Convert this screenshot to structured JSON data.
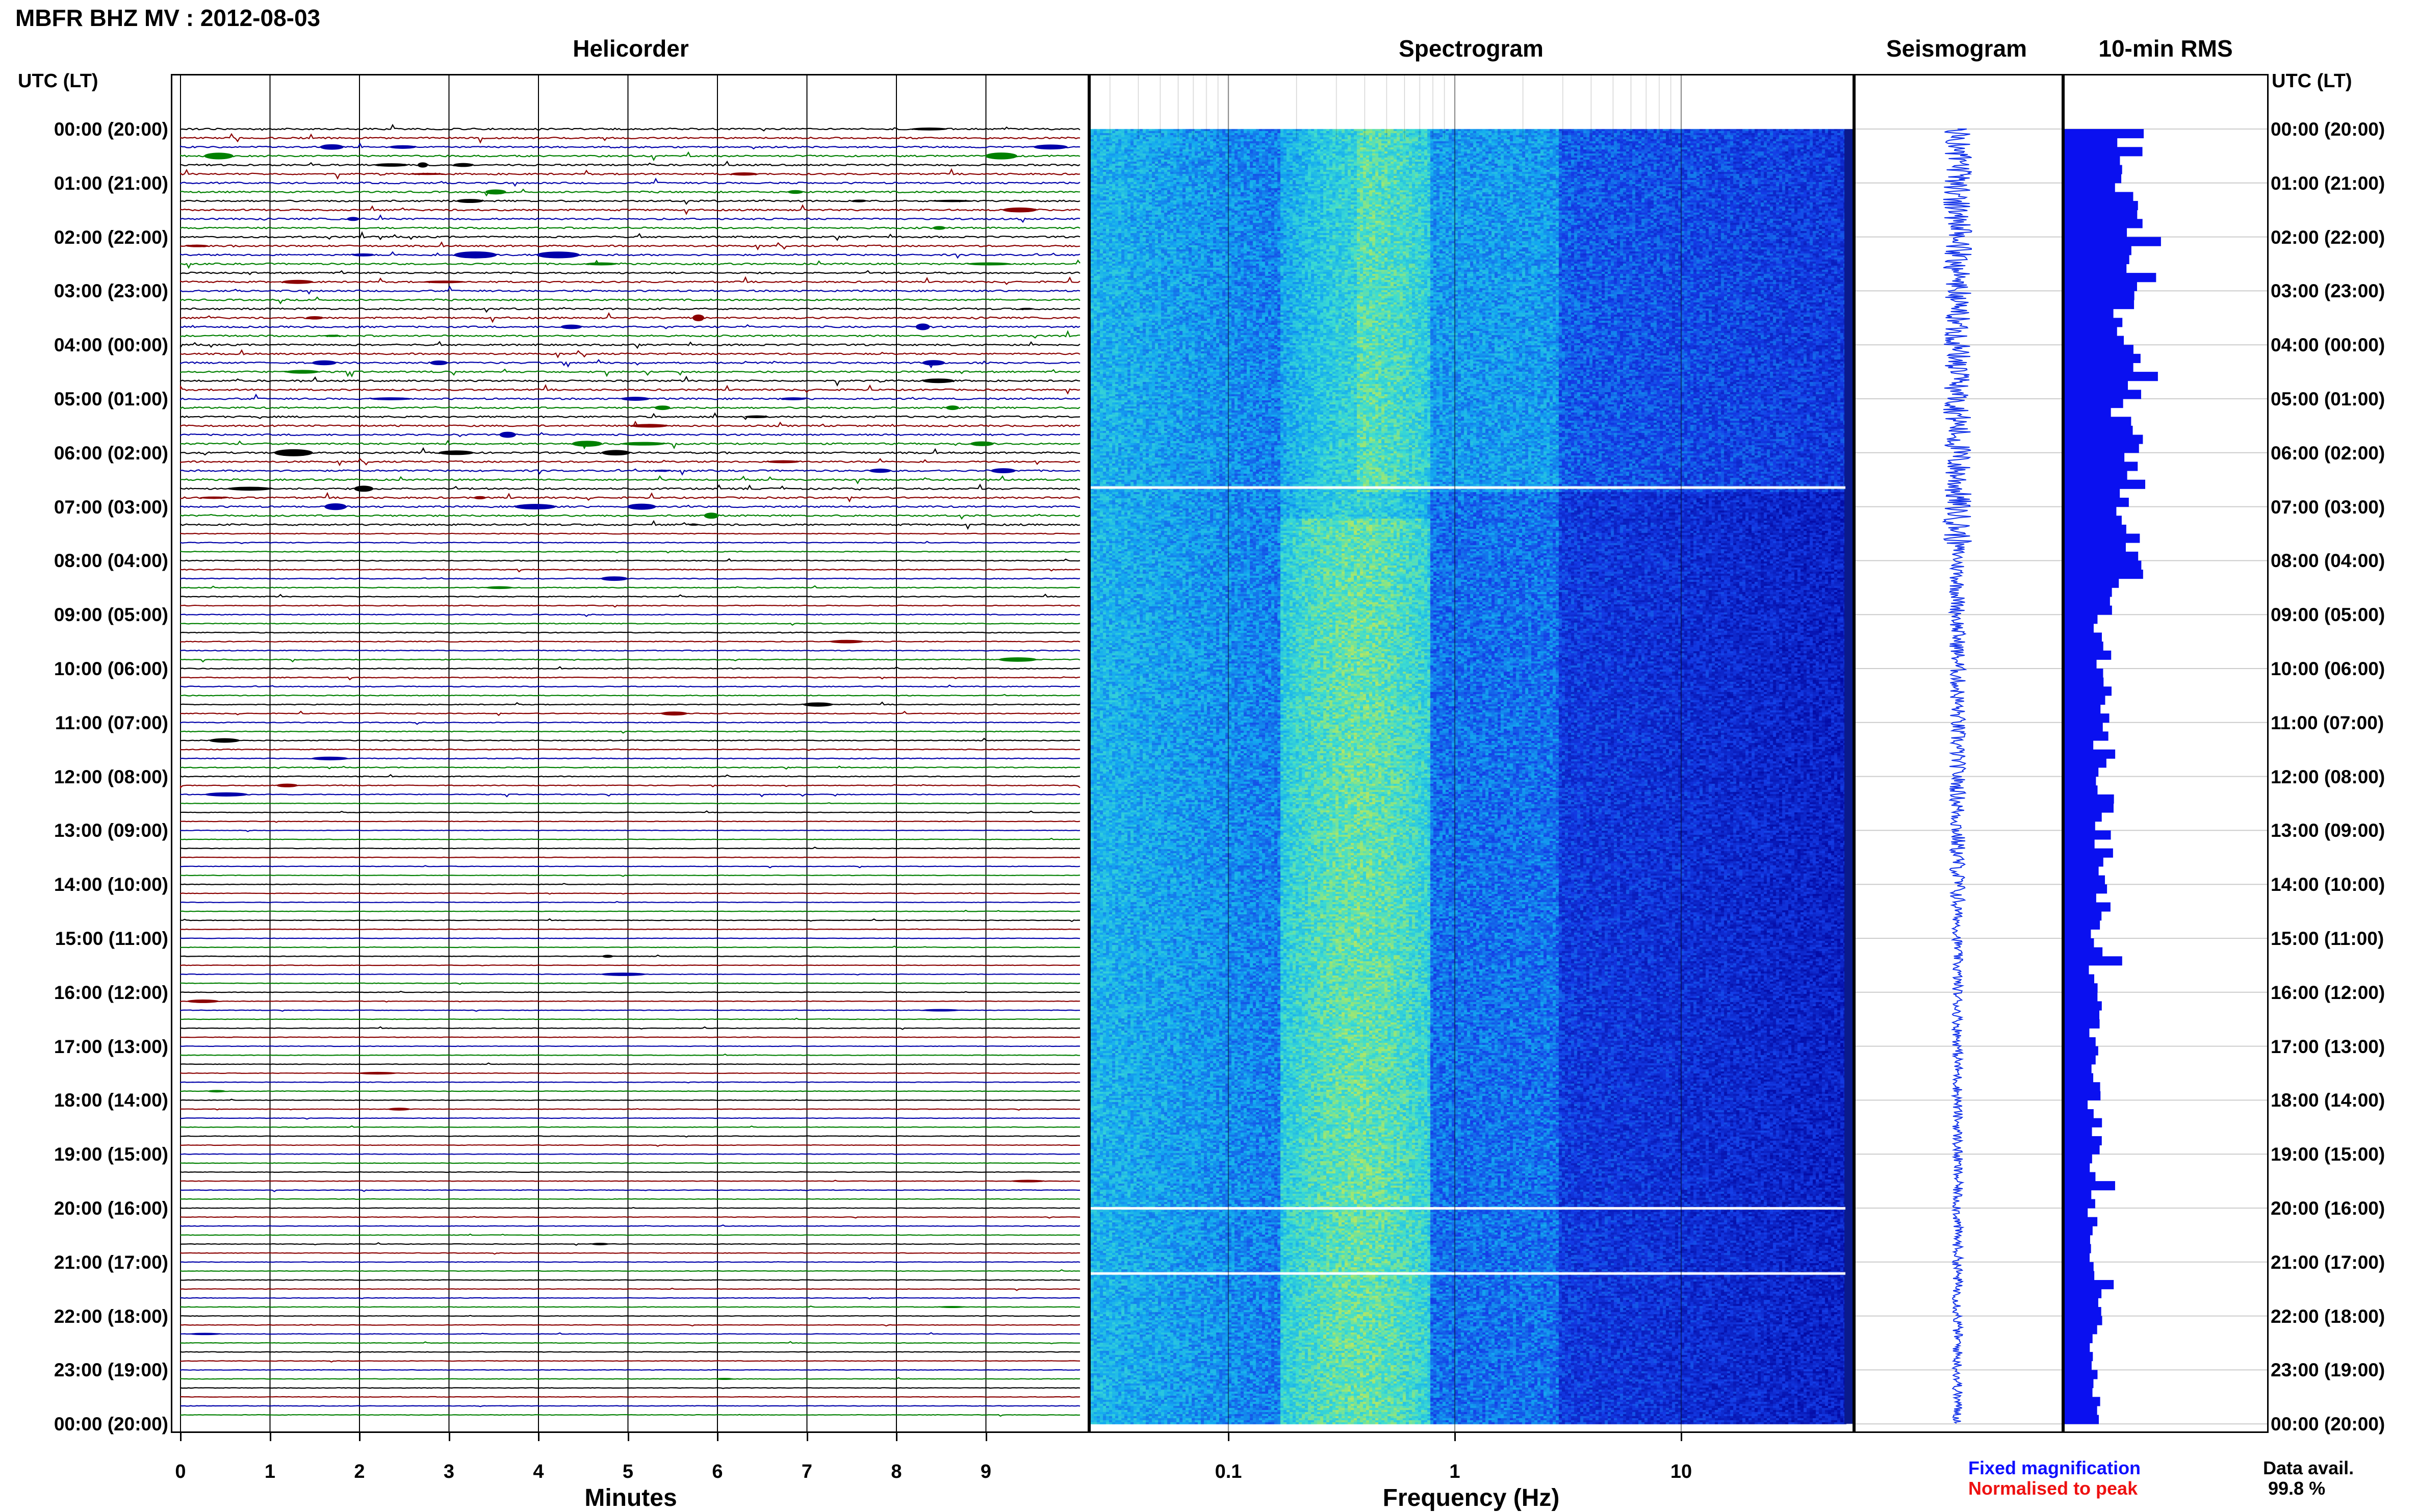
{
  "title": "MBFR BHZ MV : 2012-08-03",
  "panels": {
    "helicorder": "Helicorder",
    "spectrogram": "Spectrogram",
    "seismogram": "Seismogram",
    "rms": "10-min RMS"
  },
  "axis_header": "UTC (LT)",
  "time_labels": [
    "00:00 (20:00)",
    "01:00 (21:00)",
    "02:00 (22:00)",
    "03:00 (23:00)",
    "04:00 (00:00)",
    "05:00 (01:00)",
    "06:00 (02:00)",
    "07:00 (03:00)",
    "08:00 (04:00)",
    "09:00 (05:00)",
    "10:00 (06:00)",
    "11:00 (07:00)",
    "12:00 (08:00)",
    "13:00 (09:00)",
    "14:00 (10:00)",
    "15:00 (11:00)",
    "16:00 (12:00)",
    "17:00 (13:00)",
    "18:00 (14:00)",
    "19:00 (15:00)",
    "20:00 (16:00)",
    "21:00 (17:00)",
    "22:00 (18:00)",
    "23:00 (19:00)",
    "00:00 (20:00)"
  ],
  "x_axis": {
    "minutes_label": "Minutes",
    "minute_ticks": [
      "0",
      "1",
      "2",
      "3",
      "4",
      "5",
      "6",
      "7",
      "8",
      "9"
    ],
    "frequency_label": "Frequency (Hz)",
    "frequency_ticks": [
      "0.1",
      "1",
      "10"
    ]
  },
  "legend": {
    "fixed": "Fixed magnification",
    "normalised": "Normalised to peak",
    "fixed_color": "#1010ff",
    "normalised_color": "#ee1111"
  },
  "data_availability": {
    "label": "Data avail.",
    "value": "99.8 %"
  },
  "trace_colors": [
    "#000000",
    "#8b0000",
    "#0000aa",
    "#008000"
  ]
}
